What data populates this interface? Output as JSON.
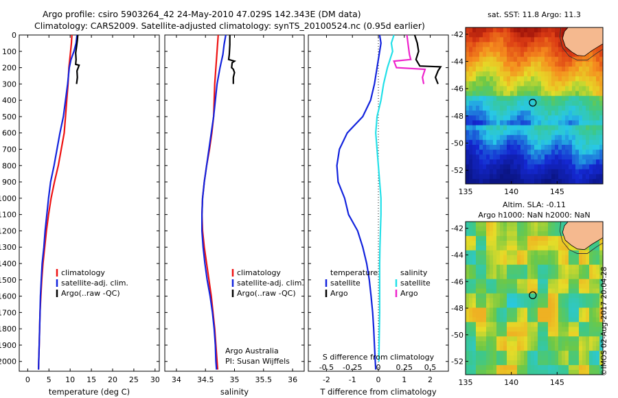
{
  "header": {
    "line1": "Argo profile: csiro 5903264_42 24-May-2010 47.029S 142.343E (DM data)",
    "line2": "Climatology: CARS2009. Satellite-adjusted climatology: synTS_20100524.nc (0.95d earlier)"
  },
  "colors": {
    "climatology": "#ee1111",
    "satellite": "#1122dd",
    "argo": "#000000",
    "sal_satellite": "#22e0e8",
    "sal_argo": "#ee22cc"
  },
  "chart_data": [
    {
      "type": "line",
      "xlabel": "temperature (deg C)",
      "xlim": [
        -2,
        31
      ],
      "ylim": [
        2060,
        0
      ],
      "xticks": [
        0,
        5,
        10,
        15,
        20,
        25,
        30
      ],
      "yticks": [
        0,
        100,
        200,
        300,
        400,
        500,
        600,
        700,
        800,
        900,
        1000,
        1100,
        1200,
        1300,
        1400,
        1500,
        1600,
        1700,
        1800,
        1900,
        2000
      ],
      "legend": [
        "climatology",
        "satellite-adj. clim.",
        "Argo(..raw -QC)"
      ],
      "series": [
        {
          "name": "climatology",
          "color": "#ee1111",
          "points": [
            [
              10.4,
              0
            ],
            [
              10.3,
              50
            ],
            [
              10.1,
              100
            ],
            [
              9.9,
              150
            ],
            [
              9.7,
              200
            ],
            [
              9.5,
              300
            ],
            [
              9.2,
              400
            ],
            [
              8.9,
              500
            ],
            [
              8.6,
              600
            ],
            [
              7.9,
              700
            ],
            [
              7.2,
              800
            ],
            [
              6.3,
              900
            ],
            [
              5.5,
              1000
            ],
            [
              4.9,
              1100
            ],
            [
              4.4,
              1200
            ],
            [
              4.0,
              1300
            ],
            [
              3.6,
              1400
            ],
            [
              3.3,
              1500
            ],
            [
              3.1,
              1600
            ],
            [
              2.9,
              1700
            ],
            [
              2.8,
              1800
            ],
            [
              2.7,
              1900
            ],
            [
              2.6,
              2000
            ],
            [
              2.55,
              2050
            ]
          ]
        },
        {
          "name": "satellite-adj. clim.",
          "color": "#1122dd",
          "points": [
            [
              11.6,
              0
            ],
            [
              11.4,
              50
            ],
            [
              10.9,
              100
            ],
            [
              10.2,
              150
            ],
            [
              9.8,
              200
            ],
            [
              9.4,
              300
            ],
            [
              8.9,
              400
            ],
            [
              8.4,
              500
            ],
            [
              7.6,
              600
            ],
            [
              6.9,
              700
            ],
            [
              6.2,
              800
            ],
            [
              5.4,
              900
            ],
            [
              4.9,
              1000
            ],
            [
              4.5,
              1100
            ],
            [
              4.1,
              1200
            ],
            [
              3.8,
              1300
            ],
            [
              3.4,
              1400
            ],
            [
              3.2,
              1500
            ],
            [
              3.0,
              1600
            ],
            [
              2.9,
              1700
            ],
            [
              2.8,
              1800
            ],
            [
              2.7,
              1900
            ],
            [
              2.6,
              2000
            ],
            [
              2.55,
              2050
            ]
          ]
        },
        {
          "name": "Argo(..raw -QC)",
          "color": "#000000",
          "points": [
            [
              11.8,
              0
            ],
            [
              11.7,
              30
            ],
            [
              11.5,
              70
            ],
            [
              11.3,
              110
            ],
            [
              11.4,
              150
            ],
            [
              11.3,
              180
            ],
            [
              12.1,
              185
            ],
            [
              11.9,
              200
            ],
            [
              11.6,
              220
            ],
            [
              11.7,
              260
            ],
            [
              11.5,
              300
            ]
          ]
        }
      ]
    },
    {
      "type": "line",
      "xlabel": "salinity",
      "xlim": [
        33.8,
        36.2
      ],
      "ylim": [
        2060,
        0
      ],
      "xticks": [
        34,
        34.5,
        35,
        35.5,
        36
      ],
      "legend": [
        "climatology",
        "satellite-adj. clim.",
        "Argo(..raw -QC)"
      ],
      "annotations": [
        "Argo Australia",
        "PI: Susan Wijffels"
      ],
      "series": [
        {
          "name": "climatology",
          "color": "#ee1111",
          "points": [
            [
              34.72,
              0
            ],
            [
              34.7,
              100
            ],
            [
              34.68,
              200
            ],
            [
              34.66,
              300
            ],
            [
              34.65,
              400
            ],
            [
              34.64,
              500
            ],
            [
              34.61,
              600
            ],
            [
              34.57,
              700
            ],
            [
              34.52,
              800
            ],
            [
              34.48,
              900
            ],
            [
              34.45,
              1000
            ],
            [
              34.44,
              1100
            ],
            [
              34.45,
              1200
            ],
            [
              34.48,
              1300
            ],
            [
              34.52,
              1400
            ],
            [
              34.56,
              1500
            ],
            [
              34.6,
              1600
            ],
            [
              34.63,
              1700
            ],
            [
              34.66,
              1800
            ],
            [
              34.68,
              1900
            ],
            [
              34.7,
              2000
            ],
            [
              34.71,
              2050
            ]
          ]
        },
        {
          "name": "satellite-adj. clim.",
          "color": "#1122dd",
          "points": [
            [
              34.85,
              0
            ],
            [
              34.82,
              60
            ],
            [
              34.8,
              120
            ],
            [
              34.75,
              200
            ],
            [
              34.7,
              300
            ],
            [
              34.67,
              400
            ],
            [
              34.64,
              500
            ],
            [
              34.6,
              600
            ],
            [
              34.56,
              700
            ],
            [
              34.52,
              800
            ],
            [
              34.48,
              900
            ],
            [
              34.45,
              1000
            ],
            [
              34.44,
              1100
            ],
            [
              34.44,
              1200
            ],
            [
              34.46,
              1300
            ],
            [
              34.49,
              1400
            ],
            [
              34.53,
              1500
            ],
            [
              34.58,
              1600
            ],
            [
              34.62,
              1700
            ],
            [
              34.65,
              1800
            ],
            [
              34.67,
              1900
            ],
            [
              34.68,
              2000
            ],
            [
              34.69,
              2050
            ]
          ]
        },
        {
          "name": "Argo(..raw -QC)",
          "color": "#000000",
          "points": [
            [
              34.92,
              0
            ],
            [
              34.92,
              60
            ],
            [
              34.91,
              120
            ],
            [
              34.9,
              150
            ],
            [
              34.95,
              155
            ],
            [
              35.0,
              160
            ],
            [
              34.96,
              170
            ],
            [
              34.95,
              200
            ],
            [
              34.98,
              210
            ],
            [
              35.0,
              230
            ],
            [
              34.98,
              260
            ],
            [
              34.98,
              300
            ]
          ]
        }
      ]
    },
    {
      "type": "line",
      "xlabel": "T difference from climatology",
      "xlabel_top": "S difference from climatology",
      "xlim": [
        -2.7,
        2.7
      ],
      "ylim": [
        2060,
        0
      ],
      "xticks": [
        -2,
        -1,
        0,
        1,
        2
      ],
      "xticks_top": [
        "-0.5",
        "-0.25",
        "0",
        "0.25",
        "0.5"
      ],
      "legend_headers": [
        "temperature",
        "salinity"
      ],
      "legend": [
        "satellite",
        "Argo",
        "satellite",
        "Argo"
      ],
      "series": [
        {
          "name": "satellite",
          "color": "#1122dd",
          "points": [
            [
              0.05,
              0
            ],
            [
              0.1,
              50
            ],
            [
              0.05,
              100
            ],
            [
              -0.05,
              200
            ],
            [
              -0.15,
              300
            ],
            [
              -0.3,
              400
            ],
            [
              -0.6,
              500
            ],
            [
              -1.2,
              600
            ],
            [
              -1.5,
              700
            ],
            [
              -1.6,
              800
            ],
            [
              -1.55,
              900
            ],
            [
              -1.3,
              1000
            ],
            [
              -1.15,
              1100
            ],
            [
              -0.8,
              1200
            ],
            [
              -0.6,
              1300
            ],
            [
              -0.45,
              1400
            ],
            [
              -0.35,
              1500
            ],
            [
              -0.28,
              1600
            ],
            [
              -0.22,
              1700
            ],
            [
              -0.18,
              1800
            ],
            [
              -0.15,
              1900
            ],
            [
              -0.12,
              2000
            ],
            [
              -0.1,
              2050
            ]
          ]
        },
        {
          "name": "Argo",
          "color": "#000000",
          "points": [
            [
              1.4,
              0
            ],
            [
              1.5,
              50
            ],
            [
              1.55,
              100
            ],
            [
              1.45,
              150
            ],
            [
              1.6,
              190
            ],
            [
              2.4,
              195
            ],
            [
              2.3,
              220
            ],
            [
              2.2,
              260
            ],
            [
              2.3,
              300
            ]
          ]
        },
        {
          "name": "satellite",
          "color": "#22e0e8",
          "points": [
            [
              0.6,
              0
            ],
            [
              0.5,
              50
            ],
            [
              0.55,
              100
            ],
            [
              0.35,
              200
            ],
            [
              0.2,
              300
            ],
            [
              0.1,
              400
            ],
            [
              -0.05,
              500
            ],
            [
              -0.1,
              600
            ],
            [
              -0.05,
              700
            ],
            [
              0.0,
              800
            ],
            [
              0.05,
              900
            ],
            [
              0.1,
              1000
            ],
            [
              0.1,
              1100
            ],
            [
              0.08,
              1200
            ],
            [
              0.06,
              1300
            ],
            [
              0.05,
              1400
            ],
            [
              0.05,
              1500
            ],
            [
              0.05,
              1600
            ],
            [
              0.05,
              1700
            ],
            [
              0.04,
              1800
            ],
            [
              0.03,
              1900
            ],
            [
              0.02,
              2000
            ]
          ]
        },
        {
          "name": "Argo",
          "color": "#ee22cc",
          "points": [
            [
              1.1,
              0
            ],
            [
              1.15,
              60
            ],
            [
              1.2,
              120
            ],
            [
              1.25,
              150
            ],
            [
              0.6,
              160
            ],
            [
              0.7,
              200
            ],
            [
              1.8,
              210
            ],
            [
              1.7,
              260
            ],
            [
              1.75,
              300
            ]
          ]
        }
      ]
    },
    {
      "type": "heatmap",
      "title": "sat. SST: 11.8 Argo: 11.3",
      "xlim": [
        135,
        150
      ],
      "ylim": [
        -53,
        -41.5
      ],
      "xticks": [
        135,
        140,
        145
      ],
      "yticks": [
        -42,
        -44,
        -46,
        -48,
        -50,
        -52
      ],
      "marker": [
        142.34,
        -47.03
      ]
    },
    {
      "type": "heatmap",
      "title": "Altim. SLA: -0.11",
      "subtitle": "Argo h1000: NaN h2000: NaN",
      "xlim": [
        135,
        150
      ],
      "ylim": [
        -53,
        -41.5
      ],
      "xticks": [
        135,
        140,
        145
      ],
      "yticks": [
        -42,
        -44,
        -46,
        -48,
        -50,
        -52
      ],
      "marker": [
        142.34,
        -47.03
      ]
    }
  ],
  "credit": "©IMOS 02-Aug-2017 20:04:28"
}
